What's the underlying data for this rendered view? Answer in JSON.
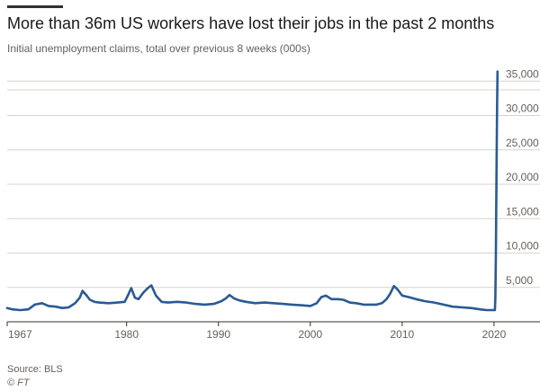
{
  "title": "More than 36m US workers have lost their jobs in the past 2 months",
  "subtitle": "Initial unemployment claims, total over previous 8 weeks (000s)",
  "source": "Source: BLS",
  "credit": "© FT",
  "colors": {
    "line": "#2a5a94",
    "grid": "#d8d2cc",
    "axis": "#33302e",
    "text": "#66605c"
  },
  "chart_data": {
    "type": "line",
    "xlim": [
      1967,
      2020.4
    ],
    "ylim": [
      0,
      37000
    ],
    "y_ticks": [
      5000,
      10000,
      15000,
      20000,
      25000,
      30000,
      35000
    ],
    "y_tick_labels": [
      "5,000",
      "10,000",
      "15,000",
      "20,000",
      "25,000",
      "30,000",
      "35,000"
    ],
    "x_ticks": [
      1967,
      1980,
      1990,
      2000,
      2010,
      2020
    ],
    "x_tick_labels": [
      "1967",
      "1980",
      "1990",
      "2000",
      "2010",
      "2020"
    ],
    "grid": true,
    "y_axis_side": "right",
    "series": [
      {
        "x": [
          1967.0,
          1967.6,
          1968.4,
          1969.3,
          1970.0,
          1970.8,
          1971.5,
          1972.3,
          1973.0,
          1973.7,
          1974.4,
          1974.9,
          1975.2,
          1975.6,
          1976.0,
          1976.5,
          1977.0,
          1978.0,
          1979.0,
          1979.8,
          1980.2,
          1980.5,
          1980.9,
          1981.3,
          1981.8,
          1982.3,
          1982.7,
          1983.2,
          1983.8,
          1984.5,
          1985.5,
          1986.5,
          1987.5,
          1988.5,
          1989.5,
          1990.3,
          1990.8,
          1991.2,
          1991.7,
          1992.3,
          1993.0,
          1994.0,
          1995.0,
          1996.0,
          1997.0,
          1998.0,
          1999.0,
          2000.0,
          2000.7,
          2001.2,
          2001.7,
          2002.3,
          2003.0,
          2003.6,
          2004.3,
          2005.0,
          2005.8,
          2006.5,
          2007.2,
          2007.8,
          2008.3,
          2008.7,
          2009.1,
          2009.5,
          2010.0,
          2010.7,
          2011.5,
          2012.5,
          2013.5,
          2014.5,
          2015.5,
          2016.5,
          2017.5,
          2018.5,
          2019.2,
          2019.8,
          2020.1,
          2020.15,
          2020.2,
          2020.27,
          2020.33,
          2020.38
        ],
        "y": [
          2000,
          1800,
          1700,
          1800,
          2500,
          2700,
          2300,
          2200,
          2000,
          2100,
          2700,
          3500,
          4500,
          3900,
          3200,
          2900,
          2800,
          2700,
          2800,
          2900,
          4000,
          4900,
          3500,
          3300,
          4200,
          4900,
          5300,
          3800,
          2900,
          2800,
          2900,
          2800,
          2600,
          2500,
          2600,
          3000,
          3400,
          3900,
          3400,
          3100,
          2900,
          2700,
          2800,
          2700,
          2600,
          2500,
          2400,
          2300,
          2700,
          3600,
          3800,
          3300,
          3300,
          3200,
          2800,
          2700,
          2500,
          2500,
          2500,
          2700,
          3300,
          4100,
          5200,
          4700,
          3800,
          3600,
          3300,
          3000,
          2800,
          2500,
          2200,
          2100,
          2000,
          1800,
          1700,
          1700,
          1700,
          3500,
          10000,
          22000,
          31000,
          36400
        ]
      }
    ]
  }
}
